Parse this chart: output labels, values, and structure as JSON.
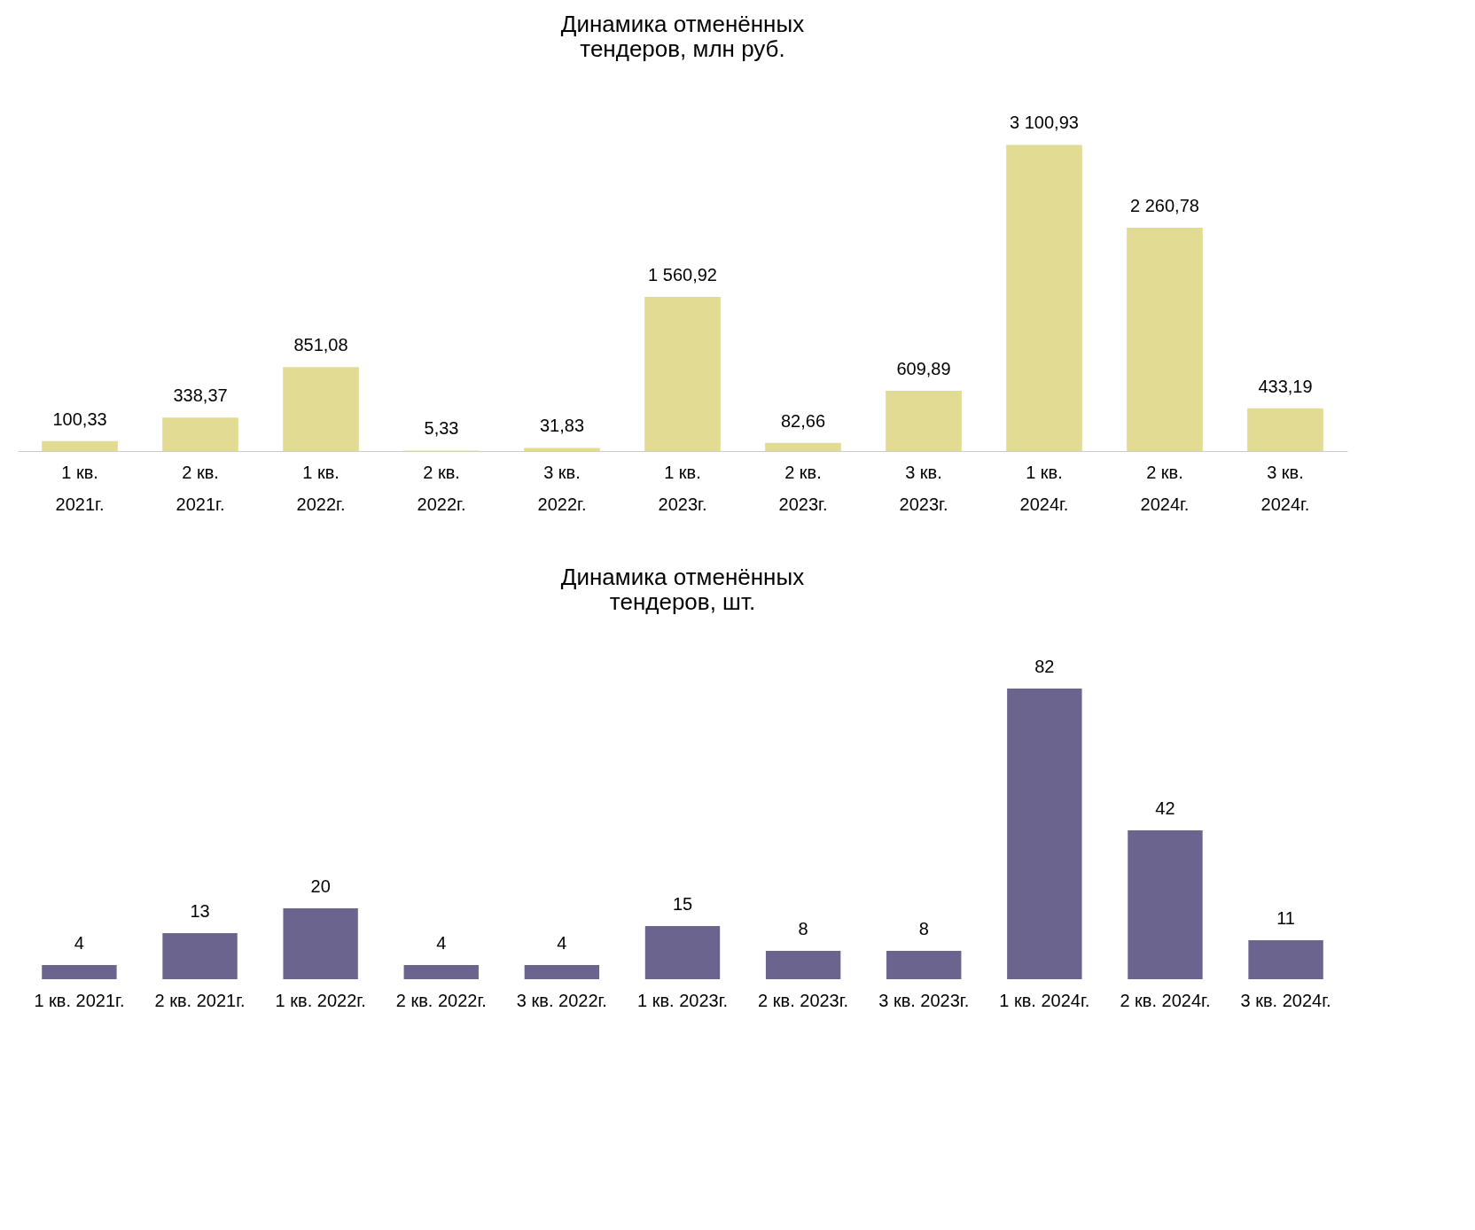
{
  "chart_data": [
    {
      "type": "bar",
      "title": [
        "Динамика отменённых",
        "тендеров, млн руб."
      ],
      "categories": [
        "1 кв. 2021г.",
        "2 кв. 2021г.",
        "1 кв. 2022г.",
        "2 кв. 2022г.",
        "3 кв. 2022г.",
        "1 кв. 2023г.",
        "2 кв. 2023г.",
        "3 кв. 2023г.",
        "1 кв. 2024г.",
        "2 кв. 2024г.",
        "3 кв. 2024г."
      ],
      "values": [
        100.33,
        338.37,
        851.08,
        5.33,
        31.83,
        1560.92,
        82.66,
        609.89,
        3100.93,
        2260.78,
        433.19
      ],
      "value_labels": [
        "100,33",
        "338,37",
        "851,08",
        "5,33",
        "31,83",
        "1 560,92",
        "82,66",
        "609,89",
        "3 100,93",
        "2 260,78",
        "433,19"
      ],
      "color": "#e2db93",
      "grid": false,
      "legend": false
    },
    {
      "type": "bar",
      "title": [
        "Динамика отменённых",
        "тендеров, шт."
      ],
      "categories": [
        "1 кв. 2021г.",
        "2 кв. 2021г.",
        "1 кв. 2022г.",
        "2 кв. 2022г.",
        "3 кв. 2022г.",
        "1 кв. 2023г.",
        "2 кв. 2023г.",
        "3 кв. 2023г.",
        "1 кв. 2024г.",
        "2 кв. 2024г.",
        "3 кв. 2024г."
      ],
      "values": [
        4,
        13,
        20,
        4,
        4,
        15,
        8,
        8,
        82,
        42,
        11
      ],
      "data_labels": true,
      "color": "#6b648e",
      "grid": false,
      "legend": false
    }
  ]
}
